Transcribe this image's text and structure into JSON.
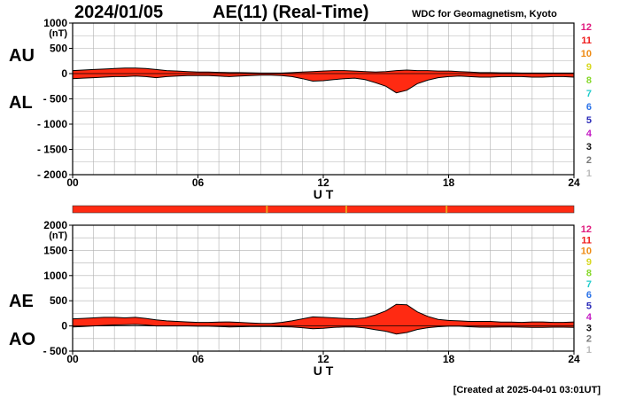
{
  "header": {
    "date": "2024/01/05",
    "title": "AE(11) (Real-Time)",
    "source": "WDC for Geomagnetism, Kyoto"
  },
  "footer": {
    "created": "[Created at 2025-04-01 03:01UT]"
  },
  "colors": {
    "fill": "#ff2a12",
    "line": "#000000",
    "grid": "#b0b0b0"
  },
  "status_bar": {
    "segment_marks_ut": [
      9.3,
      13.1,
      17.9
    ]
  },
  "station_legend": [
    {
      "label": "12",
      "color": "#e0197d"
    },
    {
      "label": "11",
      "color": "#ef1a1a"
    },
    {
      "label": "10",
      "color": "#ee8a12"
    },
    {
      "label": "9",
      "color": "#d8d820"
    },
    {
      "label": "8",
      "color": "#86d82a"
    },
    {
      "label": "7",
      "color": "#22cccc"
    },
    {
      "label": "6",
      "color": "#2a72e8"
    },
    {
      "label": "5",
      "color": "#2a2ab8"
    },
    {
      "label": "4",
      "color": "#c41ac4"
    },
    {
      "label": "3",
      "color": "#111111"
    },
    {
      "label": "2",
      "color": "#777777"
    },
    {
      "label": "1",
      "color": "#bbbbbb"
    }
  ],
  "chart_data": [
    {
      "type": "area",
      "labels": {
        "upper": "AU",
        "lower": "AL"
      },
      "unit": "(nT)",
      "xlabel": "U T",
      "xlim": [
        0,
        24
      ],
      "xticks": [
        0,
        6,
        12,
        18,
        24
      ],
      "xtick_labels": [
        "00",
        "06",
        "12",
        "18",
        "24"
      ],
      "ylim": [
        -2000,
        1000
      ],
      "yticks": [
        1000,
        500,
        0,
        -500,
        -1000,
        -1500,
        -2000
      ],
      "ytick_labels": [
        "1000",
        "500",
        "0",
        "- 500",
        "- 1000",
        "- 1500",
        "- 2000"
      ],
      "x": [
        0,
        0.5,
        1,
        1.5,
        2,
        2.5,
        3,
        3.5,
        4,
        4.5,
        5,
        5.5,
        6,
        6.5,
        7,
        7.5,
        8,
        8.5,
        9,
        9.5,
        10,
        10.5,
        11,
        11.5,
        12,
        12.5,
        13,
        13.5,
        14,
        14.5,
        15,
        15.5,
        16,
        16.5,
        17,
        17.5,
        18,
        18.5,
        19,
        19.5,
        20,
        20.5,
        21,
        21.5,
        22,
        22.5,
        23,
        23.5,
        24
      ],
      "series": [
        {
          "values": [
            60,
            70,
            80,
            90,
            100,
            110,
            110,
            100,
            80,
            60,
            50,
            40,
            30,
            30,
            25,
            20,
            20,
            15,
            10,
            10,
            10,
            20,
            30,
            40,
            50,
            60,
            60,
            50,
            40,
            30,
            40,
            60,
            70,
            60,
            60,
            50,
            50,
            40,
            30,
            20,
            20,
            15,
            15,
            10,
            10,
            10,
            10,
            10,
            10
          ]
        },
        {
          "values": [
            -100,
            -90,
            -80,
            -70,
            -60,
            -60,
            -50,
            -60,
            -80,
            -60,
            -50,
            -40,
            -40,
            -40,
            -50,
            -60,
            -50,
            -40,
            -30,
            -30,
            -40,
            -60,
            -100,
            -150,
            -140,
            -120,
            -100,
            -90,
            -120,
            -180,
            -250,
            -380,
            -330,
            -200,
            -130,
            -80,
            -60,
            -50,
            -60,
            -70,
            -70,
            -60,
            -60,
            -60,
            -70,
            -70,
            -60,
            -60,
            -70
          ]
        }
      ]
    },
    {
      "type": "area",
      "labels": {
        "upper": "AE",
        "lower": "AO"
      },
      "unit": "(nT)",
      "xlabel": "U T",
      "xlim": [
        0,
        24
      ],
      "xticks": [
        0,
        6,
        12,
        18,
        24
      ],
      "xtick_labels": [
        "00",
        "06",
        "12",
        "18",
        "24"
      ],
      "ylim": [
        -500,
        2000
      ],
      "yticks": [
        2000,
        1500,
        1000,
        500,
        0,
        -500
      ],
      "ytick_labels": [
        "2000",
        "1500",
        "1000",
        "500",
        "0",
        "- 500"
      ],
      "x": [
        0,
        0.5,
        1,
        1.5,
        2,
        2.5,
        3,
        3.5,
        4,
        4.5,
        5,
        5.5,
        6,
        6.5,
        7,
        7.5,
        8,
        8.5,
        9,
        9.5,
        10,
        10.5,
        11,
        11.5,
        12,
        12.5,
        13,
        13.5,
        14,
        14.5,
        15,
        15.5,
        16,
        16.5,
        17,
        17.5,
        18,
        18.5,
        19,
        19.5,
        20,
        20.5,
        21,
        21.5,
        22,
        22.5,
        23,
        23.5,
        24
      ],
      "series": [
        {
          "values": [
            140,
            150,
            160,
            170,
            170,
            160,
            170,
            150,
            120,
            100,
            90,
            80,
            70,
            70,
            75,
            80,
            70,
            60,
            50,
            50,
            70,
            100,
            140,
            180,
            170,
            160,
            150,
            140,
            160,
            220,
            300,
            430,
            420,
            280,
            190,
            130,
            110,
            100,
            90,
            90,
            90,
            75,
            75,
            70,
            80,
            80,
            70,
            70,
            80
          ]
        },
        {
          "values": [
            -20,
            -10,
            0,
            10,
            20,
            25,
            30,
            20,
            0,
            0,
            0,
            0,
            -5,
            -5,
            -10,
            -20,
            -15,
            -10,
            -10,
            -10,
            -15,
            -20,
            -35,
            -55,
            -45,
            -30,
            -20,
            -20,
            -40,
            -75,
            -105,
            -160,
            -130,
            -70,
            -35,
            -15,
            -5,
            -5,
            -15,
            -25,
            -25,
            -22,
            -22,
            -25,
            -30,
            -30,
            -25,
            -25,
            -30
          ]
        }
      ]
    }
  ]
}
